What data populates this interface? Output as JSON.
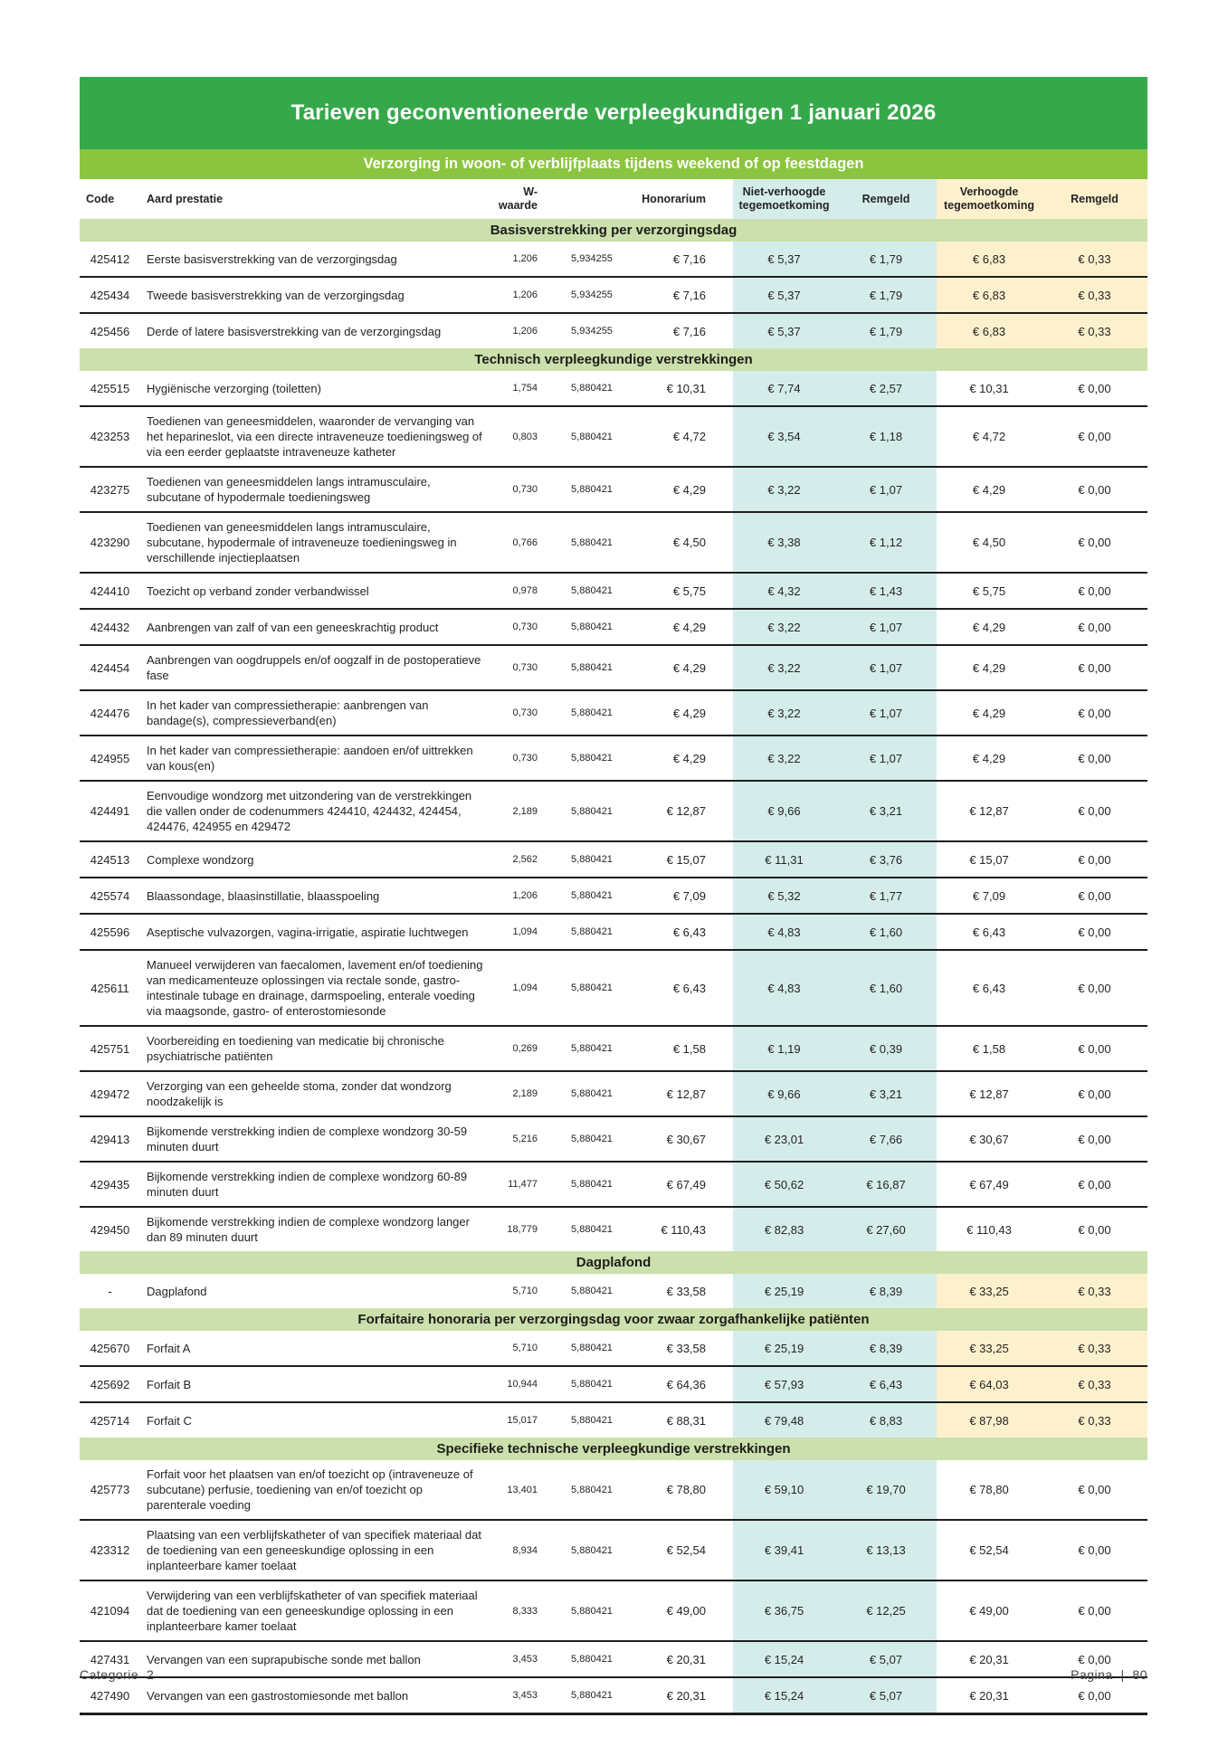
{
  "document": {
    "title": "Tarieven geconventioneerde verpleegkundigen 1 januari 2026",
    "subtitle": "Verzorging in woon- of verblijfplaats tijdens weekend of op feestdagen",
    "footer_left": "Categorie  2",
    "footer_right": "Pagina  |  80"
  },
  "colors": {
    "title_green": "#35a94a",
    "sub_green": "#8bc53f",
    "section_green": "#cbe0ac",
    "band_blue": "#d4edeb",
    "band_yellow": "#fdf1cd"
  },
  "table": {
    "columns": [
      {
        "key": "code",
        "label": "Code"
      },
      {
        "key": "desc",
        "label": "Aard prestatie"
      },
      {
        "key": "w",
        "label": "W-waarde"
      },
      {
        "key": "factor",
        "label": ""
      },
      {
        "key": "hon",
        "label": "Honorarium"
      },
      {
        "key": "niet",
        "label": "Niet-verhoogde tegemoetkoming"
      },
      {
        "key": "rem1",
        "label": "Remgeld"
      },
      {
        "key": "verh",
        "label": "Verhoogde tegemoetkoming"
      },
      {
        "key": "rem2",
        "label": "Remgeld"
      }
    ],
    "sections": [
      {
        "header": "Basisverstrekking per verzorgingsdag",
        "rows": [
          {
            "code": "425412",
            "desc": "Eerste basisverstrekking van de verzorgingsdag",
            "w": "1,206",
            "factor": "5,934255",
            "hon": "€ 7,16",
            "niet": "€ 5,37",
            "rem1": "€ 1,79",
            "verh": "€ 6,83",
            "rem2": "€ 0,33",
            "hl": true
          },
          {
            "code": "425434",
            "desc": "Tweede basisverstrekking van de verzorgingsdag",
            "w": "1,206",
            "factor": "5,934255",
            "hon": "€ 7,16",
            "niet": "€ 5,37",
            "rem1": "€ 1,79",
            "verh": "€ 6,83",
            "rem2": "€ 0,33",
            "hl": true
          },
          {
            "code": "425456",
            "desc": "Derde of latere basisverstrekking van de verzorgingsdag",
            "w": "1,206",
            "factor": "5,934255",
            "hon": "€ 7,16",
            "niet": "€ 5,37",
            "rem1": "€ 1,79",
            "verh": "€ 6,83",
            "rem2": "€ 0,33",
            "hl": true
          }
        ]
      },
      {
        "header": "Technisch verpleegkundige verstrekkingen",
        "rows": [
          {
            "code": "425515",
            "desc": "Hygiënische verzorging (toiletten)",
            "w": "1,754",
            "factor": "5,880421",
            "hon": "€ 10,31",
            "niet": "€ 7,74",
            "rem1": "€ 2,57",
            "verh": "€ 10,31",
            "rem2": "€ 0,00",
            "hl": false
          },
          {
            "code": "423253",
            "desc": "Toedienen van geneesmiddelen, waaronder de vervanging van het heparineslot, via een directe intraveneuze toedieningsweg of via een eerder geplaatste intraveneuze katheter",
            "w": "0,803",
            "factor": "5,880421",
            "hon": "€ 4,72",
            "niet": "€ 3,54",
            "rem1": "€ 1,18",
            "verh": "€ 4,72",
            "rem2": "€ 0,00",
            "hl": false
          },
          {
            "code": "423275",
            "desc": "Toedienen van geneesmiddelen langs intramusculaire, subcutane of hypodermale toedieningsweg",
            "w": "0,730",
            "factor": "5,880421",
            "hon": "€ 4,29",
            "niet": "€ 3,22",
            "rem1": "€ 1,07",
            "verh": "€ 4,29",
            "rem2": "€ 0,00",
            "hl": false
          },
          {
            "code": "423290",
            "desc": "Toedienen van geneesmiddelen langs intramusculaire, subcutane, hypodermale of intraveneuze toedieningsweg in verschillende injectieplaatsen",
            "w": "0,766",
            "factor": "5,880421",
            "hon": "€ 4,50",
            "niet": "€ 3,38",
            "rem1": "€ 1,12",
            "verh": "€ 4,50",
            "rem2": "€ 0,00",
            "hl": false
          },
          {
            "code": "424410",
            "desc": "Toezicht op verband zonder verbandwissel",
            "w": "0,978",
            "factor": "5,880421",
            "hon": "€ 5,75",
            "niet": "€ 4,32",
            "rem1": "€ 1,43",
            "verh": "€ 5,75",
            "rem2": "€ 0,00",
            "hl": false
          },
          {
            "code": "424432",
            "desc": "Aanbrengen van zalf of van een geneeskrachtig product",
            "w": "0,730",
            "factor": "5,880421",
            "hon": "€ 4,29",
            "niet": "€ 3,22",
            "rem1": "€ 1,07",
            "verh": "€ 4,29",
            "rem2": "€ 0,00",
            "hl": false
          },
          {
            "code": "424454",
            "desc": "Aanbrengen van oogdruppels en/of oogzalf in de postoperatieve fase",
            "w": "0,730",
            "factor": "5,880421",
            "hon": "€ 4,29",
            "niet": "€ 3,22",
            "rem1": "€ 1,07",
            "verh": "€ 4,29",
            "rem2": "€ 0,00",
            "hl": false
          },
          {
            "code": "424476",
            "desc": "In het kader van compressietherapie: aanbrengen van bandage(s), compressieverband(en)",
            "w": "0,730",
            "factor": "5,880421",
            "hon": "€ 4,29",
            "niet": "€ 3,22",
            "rem1": "€ 1,07",
            "verh": "€ 4,29",
            "rem2": "€ 0,00",
            "hl": false
          },
          {
            "code": "424955",
            "desc": "In het kader van compressietherapie: aandoen en/of uittrekken van kous(en)",
            "w": "0,730",
            "factor": "5,880421",
            "hon": "€ 4,29",
            "niet": "€ 3,22",
            "rem1": "€ 1,07",
            "verh": "€ 4,29",
            "rem2": "€ 0,00",
            "hl": false
          },
          {
            "code": "424491",
            "desc": "Eenvoudige wondzorg met uitzondering van de verstrekkingen die vallen onder de codenummers 424410, 424432, 424454, 424476, 424955 en 429472",
            "w": "2,189",
            "factor": "5,880421",
            "hon": "€ 12,87",
            "niet": "€ 9,66",
            "rem1": "€ 3,21",
            "verh": "€ 12,87",
            "rem2": "€ 0,00",
            "hl": false
          },
          {
            "code": "424513",
            "desc": "Complexe wondzorg",
            "w": "2,562",
            "factor": "5,880421",
            "hon": "€ 15,07",
            "niet": "€ 11,31",
            "rem1": "€ 3,76",
            "verh": "€ 15,07",
            "rem2": "€ 0,00",
            "hl": false
          },
          {
            "code": "425574",
            "desc": "Blaassondage, blaasinstillatie, blaasspoeling",
            "w": "1,206",
            "factor": "5,880421",
            "hon": "€ 7,09",
            "niet": "€ 5,32",
            "rem1": "€ 1,77",
            "verh": "€ 7,09",
            "rem2": "€ 0,00",
            "hl": false
          },
          {
            "code": "425596",
            "desc": "Aseptische vulvazorgen, vagina-irrigatie, aspiratie luchtwegen",
            "w": "1,094",
            "factor": "5,880421",
            "hon": "€ 6,43",
            "niet": "€ 4,83",
            "rem1": "€ 1,60",
            "verh": "€ 6,43",
            "rem2": "€ 0,00",
            "hl": false
          },
          {
            "code": "425611",
            "desc": "Manueel verwijderen van faecalomen, lavement en/of toediening van medicamenteuze oplossingen via rectale sonde, gastro-intestinale tubage en drainage, darmspoeling, enterale voeding via maagsonde, gastro- of enterostomiesonde",
            "w": "1,094",
            "factor": "5,880421",
            "hon": "€ 6,43",
            "niet": "€ 4,83",
            "rem1": "€ 1,60",
            "verh": "€ 6,43",
            "rem2": "€ 0,00",
            "hl": false
          },
          {
            "code": "425751",
            "desc": "Voorbereiding en toediening van medicatie bij chronische psychiatrische patiënten",
            "w": "0,269",
            "factor": "5,880421",
            "hon": "€ 1,58",
            "niet": "€ 1,19",
            "rem1": "€ 0,39",
            "verh": "€ 1,58",
            "rem2": "€ 0,00",
            "hl": false
          },
          {
            "code": "429472",
            "desc": "Verzorging van een geheelde stoma, zonder dat wondzorg noodzakelijk is",
            "w": "2,189",
            "factor": "5,880421",
            "hon": "€ 12,87",
            "niet": "€ 9,66",
            "rem1": "€ 3,21",
            "verh": "€ 12,87",
            "rem2": "€ 0,00",
            "hl": false
          },
          {
            "code": "429413",
            "desc": "Bijkomende verstrekking indien de complexe wondzorg 30-59 minuten duurt",
            "w": "5,216",
            "factor": "5,880421",
            "hon": "€ 30,67",
            "niet": "€ 23,01",
            "rem1": "€ 7,66",
            "verh": "€ 30,67",
            "rem2": "€ 0,00",
            "hl": false
          },
          {
            "code": "429435",
            "desc": "Bijkomende verstrekking indien de complexe wondzorg 60-89 minuten duurt",
            "w": "11,477",
            "factor": "5,880421",
            "hon": "€ 67,49",
            "niet": "€ 50,62",
            "rem1": "€ 16,87",
            "verh": "€ 67,49",
            "rem2": "€ 0,00",
            "hl": false
          },
          {
            "code": "429450",
            "desc": "Bijkomende verstrekking indien de complexe wondzorg langer dan 89 minuten duurt",
            "w": "18,779",
            "factor": "5,880421",
            "hon": "€ 110,43",
            "niet": "€ 82,83",
            "rem1": "€ 27,60",
            "verh": "€ 110,43",
            "rem2": "€ 0,00",
            "hl": false
          }
        ]
      },
      {
        "header": "Dagplafond",
        "rows": [
          {
            "code": "-",
            "desc": "Dagplafond",
            "w": "5,710",
            "factor": "5,880421",
            "hon": "€ 33,58",
            "niet": "€ 25,19",
            "rem1": "€ 8,39",
            "verh": "€ 33,25",
            "rem2": "€ 0,33",
            "hl": true
          }
        ]
      },
      {
        "header": "Forfaitaire honoraria per verzorgingsdag voor zwaar zorgafhankelijke patiënten",
        "rows": [
          {
            "code": "425670",
            "desc": "Forfait A",
            "w": "5,710",
            "factor": "5,880421",
            "hon": "€ 33,58",
            "niet": "€ 25,19",
            "rem1": "€ 8,39",
            "verh": "€ 33,25",
            "rem2": "€ 0,33",
            "hl": true
          },
          {
            "code": "425692",
            "desc": "Forfait B",
            "w": "10,944",
            "factor": "5,880421",
            "hon": "€ 64,36",
            "niet": "€ 57,93",
            "rem1": "€ 6,43",
            "verh": "€ 64,03",
            "rem2": "€ 0,33",
            "hl": true
          },
          {
            "code": "425714",
            "desc": "Forfait C",
            "w": "15,017",
            "factor": "5,880421",
            "hon": "€ 88,31",
            "niet": "€ 79,48",
            "rem1": "€ 8,83",
            "verh": "€ 87,98",
            "rem2": "€ 0,33",
            "hl": true
          }
        ]
      },
      {
        "header": "Specifieke technische verpleegkundige verstrekkingen",
        "rows": [
          {
            "code": "425773",
            "desc": "Forfait voor het plaatsen van en/of toezicht op (intraveneuze of subcutane) perfusie, toediening van en/of toezicht op parenterale voeding",
            "w": "13,401",
            "factor": "5,880421",
            "hon": "€ 78,80",
            "niet": "€ 59,10",
            "rem1": "€ 19,70",
            "verh": "€ 78,80",
            "rem2": "€ 0,00",
            "hl": false
          },
          {
            "code": "423312",
            "desc": "Plaatsing van een verblijfskatheter of van specifiek materiaal dat de toediening van een geneeskundige oplossing in een inplanteerbare kamer toelaat",
            "w": "8,934",
            "factor": "5,880421",
            "hon": "€ 52,54",
            "niet": "€ 39,41",
            "rem1": "€ 13,13",
            "verh": "€ 52,54",
            "rem2": "€ 0,00",
            "hl": false
          },
          {
            "code": "421094",
            "desc": "Verwijdering van een verblijfskatheter of van specifiek materiaal dat de toediening van een geneeskundige oplossing in een inplanteerbare kamer toelaat",
            "w": "8,333",
            "factor": "5,880421",
            "hon": "€ 49,00",
            "niet": "€ 36,75",
            "rem1": "€ 12,25",
            "verh": "€ 49,00",
            "rem2": "€ 0,00",
            "hl": false
          },
          {
            "code": "427431",
            "desc": "Vervangen van een suprapubische sonde met ballon",
            "w": "3,453",
            "factor": "5,880421",
            "hon": "€ 20,31",
            "niet": "€ 15,24",
            "rem1": "€ 5,07",
            "verh": "€ 20,31",
            "rem2": "€ 0,00",
            "hl": false
          },
          {
            "code": "427490",
            "desc": "Vervangen van een gastrostomiesonde met ballon",
            "w": "3,453",
            "factor": "5,880421",
            "hon": "€ 20,31",
            "niet": "€ 15,24",
            "rem1": "€ 5,07",
            "verh": "€ 20,31",
            "rem2": "€ 0,00",
            "hl": false
          }
        ]
      }
    ]
  }
}
